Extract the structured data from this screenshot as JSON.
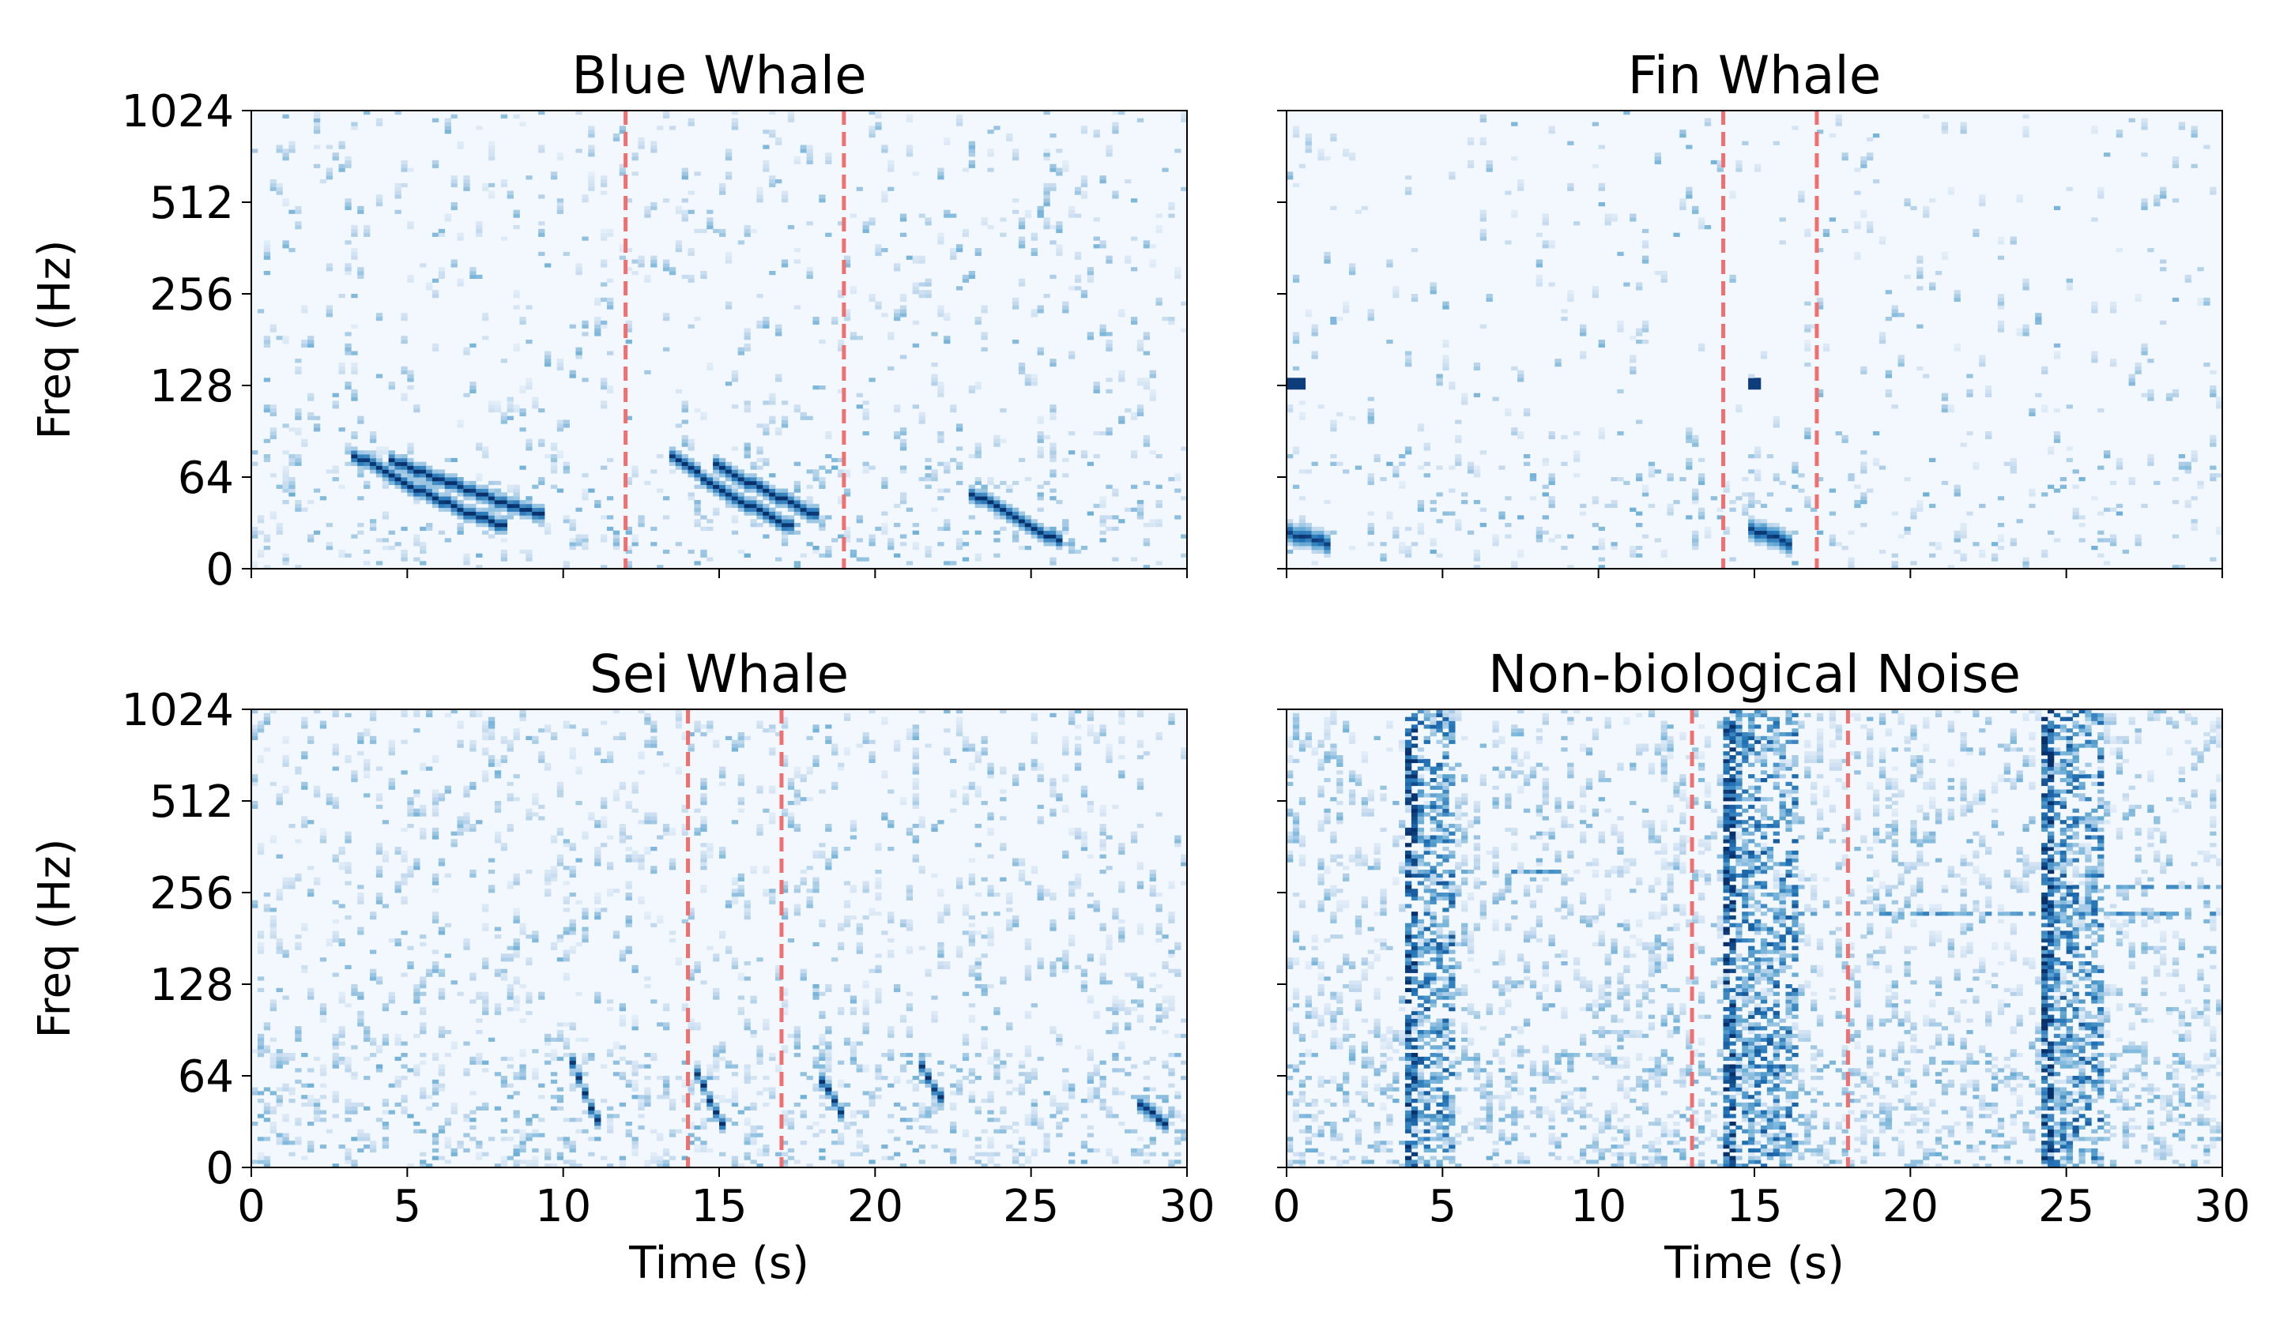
{
  "figure": {
    "ytick_labels": [
      "0",
      "64",
      "128",
      "256",
      "512",
      "1024"
    ],
    "xtick_labels": [
      "0",
      "5",
      "10",
      "15",
      "20",
      "25",
      "30"
    ],
    "ylabel": "Freq (Hz)",
    "xlabel": "Time (s)"
  },
  "chart_data": [
    {
      "type": "heatmap",
      "title": "Blue Whale",
      "xlabel": "",
      "ylabel": "Freq (Hz)",
      "xlim": [
        0,
        30
      ],
      "ylim": [
        0,
        1024
      ],
      "yscale": "log2-like",
      "yticks": [
        0,
        64,
        128,
        256,
        512,
        1024
      ],
      "xticks": [
        0,
        5,
        10,
        15,
        20,
        25,
        30
      ],
      "colormap": "Blues",
      "markers": [
        12,
        19
      ],
      "marker_color": "#f07070",
      "noise_density": 0.9,
      "calls": [
        {
          "kind": "downsweep",
          "t_start": 3.3,
          "t_end": 8.0,
          "f_start": 75,
          "f_end": 30
        },
        {
          "kind": "downsweep",
          "t_start": 4.5,
          "t_end": 9.2,
          "f_start": 72,
          "f_end": 38
        },
        {
          "kind": "downsweep",
          "t_start": 13.5,
          "t_end": 17.2,
          "f_start": 75,
          "f_end": 30
        },
        {
          "kind": "downsweep",
          "t_start": 14.8,
          "t_end": 18.0,
          "f_start": 70,
          "f_end": 38
        },
        {
          "kind": "downsweep",
          "t_start": 23.0,
          "t_end": 25.8,
          "f_start": 52,
          "f_end": 20
        }
      ]
    },
    {
      "type": "heatmap",
      "title": "Fin Whale",
      "xlabel": "",
      "ylabel": "",
      "xlim": [
        0,
        30
      ],
      "ylim": [
        0,
        1024
      ],
      "yscale": "log2-like",
      "yticks": [
        0,
        64,
        128,
        256,
        512,
        1024
      ],
      "xticks": [
        0,
        5,
        10,
        15,
        20,
        25,
        30
      ],
      "colormap": "Blues",
      "markers": [
        14,
        17
      ],
      "marker_color": "#f07070",
      "noise_density": 0.55,
      "calls": [
        {
          "kind": "pulse",
          "t_start": 0.1,
          "t_end": 1.4,
          "f_start": 25,
          "f_end": 18
        },
        {
          "kind": "pulse",
          "t_start": 14.8,
          "t_end": 16.1,
          "f_start": 28,
          "f_end": 18
        },
        {
          "kind": "blob",
          "t_start": 0.1,
          "t_end": 0.4,
          "f_start": 128,
          "f_end": 128
        },
        {
          "kind": "blob",
          "t_start": 14.9,
          "t_end": 15.2,
          "f_start": 128,
          "f_end": 128
        }
      ]
    },
    {
      "type": "heatmap",
      "title": "Sei Whale",
      "xlabel": "Time (s)",
      "ylabel": "Freq (Hz)",
      "xlim": [
        0,
        30
      ],
      "ylim": [
        0,
        1024
      ],
      "yscale": "log2-like",
      "yticks": [
        0,
        64,
        128,
        256,
        512,
        1024
      ],
      "xticks": [
        0,
        5,
        10,
        15,
        20,
        25,
        30
      ],
      "colormap": "Blues",
      "markers": [
        14,
        17
      ],
      "marker_color": "#f07070",
      "noise_density": 1.5,
      "calls": [
        {
          "kind": "downsweep",
          "t_start": 10.3,
          "t_end": 11.2,
          "f_start": 70,
          "f_end": 32
        },
        {
          "kind": "downsweep",
          "t_start": 14.3,
          "t_end": 15.2,
          "f_start": 64,
          "f_end": 30
        },
        {
          "kind": "downsweep",
          "t_start": 18.3,
          "t_end": 18.9,
          "f_start": 60,
          "f_end": 38
        },
        {
          "kind": "downsweep",
          "t_start": 21.5,
          "t_end": 22.1,
          "f_start": 68,
          "f_end": 48
        },
        {
          "kind": "downsweep",
          "t_start": 28.4,
          "t_end": 29.2,
          "f_start": 45,
          "f_end": 30
        }
      ]
    },
    {
      "type": "heatmap",
      "title": "Non-biological Noise",
      "xlabel": "Time (s)",
      "ylabel": "",
      "xlim": [
        0,
        30
      ],
      "ylim": [
        0,
        1024
      ],
      "yscale": "log2-like",
      "yticks": [
        0,
        64,
        128,
        256,
        512,
        1024
      ],
      "xticks": [
        0,
        5,
        10,
        15,
        20,
        25,
        30
      ],
      "colormap": "Blues",
      "markers": [
        13,
        18
      ],
      "marker_color": "#f07070",
      "noise_density": 2.2,
      "bursts": [
        {
          "t_start": 3.9,
          "t_end": 5.3
        },
        {
          "t_start": 14.0,
          "t_end": 16.3
        },
        {
          "t_start": 24.2,
          "t_end": 26.0
        }
      ],
      "hbands": [
        {
          "f": 300,
          "t_start": 4.0,
          "t_end": 9.5
        },
        {
          "f": 220,
          "t_start": 14.0,
          "t_end": 30.0
        },
        {
          "f": 270,
          "t_start": 24.0,
          "t_end": 30.0
        }
      ]
    }
  ]
}
